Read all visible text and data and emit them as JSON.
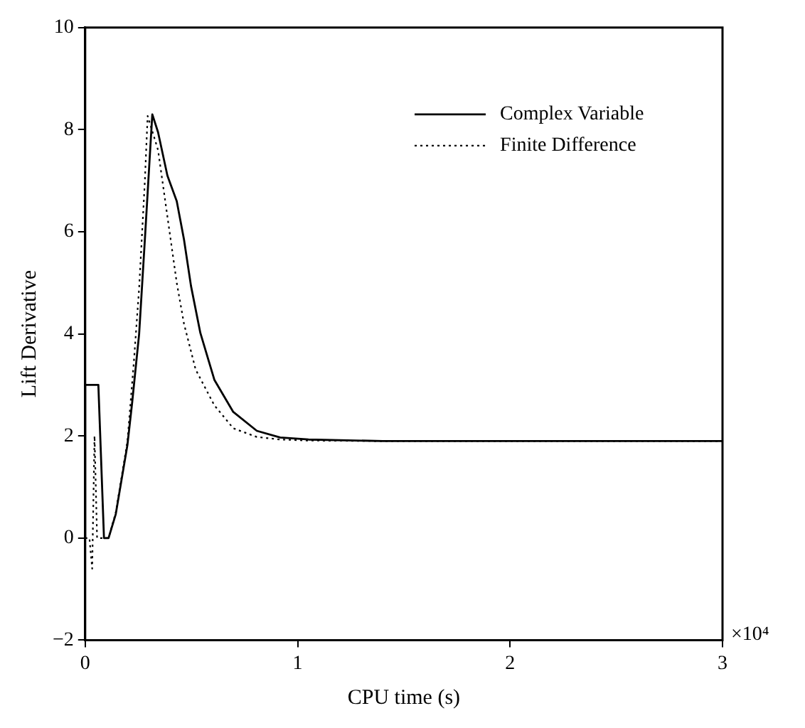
{
  "chart_data": {
    "type": "line",
    "xlabel": "CPU time (s)",
    "ylabel": "Lift Derivative",
    "annotations": [
      "×10⁴"
    ],
    "xlim": [
      0,
      3
    ],
    "xticks": [
      0,
      1,
      2,
      3
    ],
    "ylim": [
      -2,
      10
    ],
    "yticks": [
      -2,
      0,
      2,
      4,
      6,
      8,
      10
    ],
    "grid": false,
    "legend": "top right",
    "marker": "none",
    "series": [
      {
        "name": "Complex Variable",
        "color": "#000000",
        "line_style": "solid",
        "x": [
          0,
          0,
          0.062,
          0.0885,
          0.11,
          0.144,
          0.199,
          0.221,
          0.254,
          0.281,
          0.303,
          0.316,
          0.343,
          0.387,
          0.431,
          0.465,
          0.498,
          0.542,
          0.608,
          0.697,
          0.808,
          0.918,
          1.051,
          1.4,
          2.0,
          3.0
        ],
        "values": [
          0,
          3,
          3,
          0,
          0,
          0.47,
          1.83,
          2.65,
          4.0,
          5.85,
          7.4,
          8.3,
          7.95,
          7.1,
          6.6,
          5.85,
          4.94,
          4.02,
          3.1,
          2.47,
          2.1,
          1.97,
          1.93,
          1.9,
          1.9,
          1.9
        ]
      },
      {
        "name": "Finite Difference",
        "color": "#000000",
        "line_style": "dotted",
        "x": [
          0,
          0.02,
          0.033,
          0.044,
          0.056,
          0.11,
          0.144,
          0.199,
          0.23,
          0.254,
          0.281,
          0.294,
          0.343,
          0.387,
          0.431,
          0.465,
          0.52,
          0.608,
          0.697,
          0.808,
          0.918,
          1.051,
          1.4,
          2.0,
          3.0
        ],
        "values": [
          0,
          0,
          -0.6,
          2.0,
          0,
          0,
          0.5,
          1.9,
          3.5,
          4.9,
          7.0,
          8.27,
          7.6,
          6.3,
          5.0,
          4.2,
          3.3,
          2.6,
          2.15,
          1.98,
          1.93,
          1.91,
          1.9,
          1.9,
          1.9
        ]
      }
    ]
  }
}
